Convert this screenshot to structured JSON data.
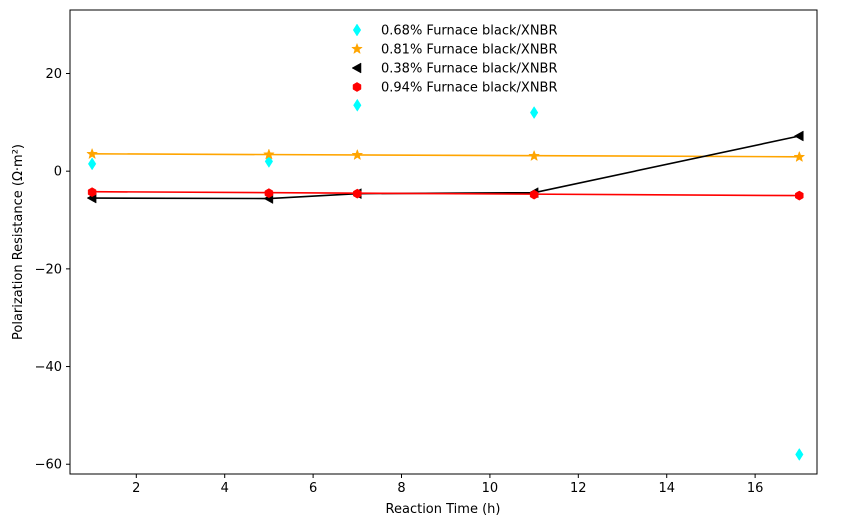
{
  "chart_data": {
    "type": "line",
    "title": "",
    "xlabel": "Reaction Time (h)",
    "ylabel": "Polarization Resistance (Ω·m²)",
    "xlim": [
      0.5,
      17.4
    ],
    "ylim": [
      -62,
      33
    ],
    "xticks": [
      2,
      4,
      6,
      8,
      10,
      12,
      14,
      16
    ],
    "yticks": [
      20,
      0,
      -20,
      -40,
      -60
    ],
    "ytick_labels": [
      "20",
      "0",
      "−20",
      "−40",
      "−60"
    ],
    "grid": false,
    "legend_position": "upper center",
    "series": [
      {
        "name": "0.68% Furnace black/XNBR",
        "style": "scatter",
        "marker": "thin-diamond",
        "color": "#00ffff",
        "x": [
          1,
          5,
          7,
          11,
          17
        ],
        "y": [
          1.5,
          2.0,
          13.5,
          12.0,
          -58.0
        ]
      },
      {
        "name": "0.81% Furnace black/XNBR",
        "style": "line+marker",
        "marker": "star",
        "color": "#ffa500",
        "x": [
          1,
          5,
          7,
          11,
          17
        ],
        "y": [
          3.5,
          3.4,
          3.3,
          3.1,
          2.9
        ],
        "fit": [
          3.55,
          2.95
        ]
      },
      {
        "name": "0.38% Furnace black/XNBR",
        "style": "line+marker",
        "marker": "triangle-left",
        "color": "#000000",
        "x": [
          1,
          5,
          7,
          11,
          17
        ],
        "y": [
          -5.5,
          -5.6,
          -4.6,
          -4.4,
          7.2
        ]
      },
      {
        "name": "0.94% Furnace black/XNBR",
        "style": "line+marker",
        "marker": "hexagon",
        "color": "#ff0000",
        "x": [
          1,
          5,
          7,
          11,
          17
        ],
        "y": [
          -4.3,
          -4.5,
          -4.6,
          -4.8,
          -5.0
        ],
        "fit": [
          -4.2,
          -5.0
        ]
      }
    ]
  }
}
